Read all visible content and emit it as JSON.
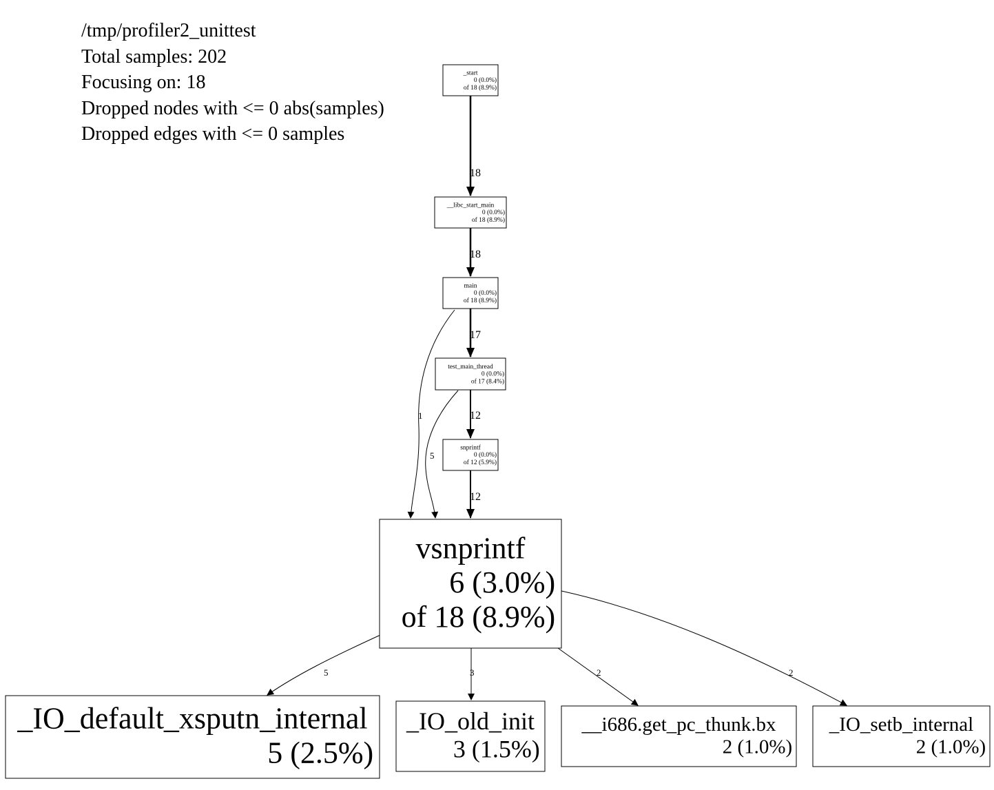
{
  "header": {
    "file": "/tmp/profiler2_unittest",
    "total_samples": "Total samples: 202",
    "focusing": "Focusing on: 18",
    "dropped_nodes": "Dropped nodes with <= 0 abs(samples)",
    "dropped_edges": "Dropped edges with <= 0 samples"
  },
  "nodes": [
    {
      "id": "start",
      "name": "_start",
      "self": "0 (0.0%)",
      "cum": "of 18 (8.9%)"
    },
    {
      "id": "libc",
      "name": "__libc_start_main",
      "self": "0 (0.0%)",
      "cum": "of 18 (8.9%)"
    },
    {
      "id": "main",
      "name": "main",
      "self": "0 (0.0%)",
      "cum": "of 18 (8.9%)"
    },
    {
      "id": "test",
      "name": "test_main_thread",
      "self": "0 (0.0%)",
      "cum": "of 17 (8.4%)"
    },
    {
      "id": "snprintf",
      "name": "snprintf",
      "self": "0 (0.0%)",
      "cum": "of 12 (5.9%)"
    },
    {
      "id": "vsnprintf",
      "name": "vsnprintf",
      "self": "6 (3.0%)",
      "cum": "of 18 (8.9%)"
    },
    {
      "id": "xsputn",
      "name": "_IO_default_xsputn_internal",
      "self": "5 (2.5%)"
    },
    {
      "id": "oldinit",
      "name": "_IO_old_init",
      "self": "3 (1.5%)"
    },
    {
      "id": "thunk",
      "name": "__i686.get_pc_thunk.bx",
      "self": "2 (1.0%)"
    },
    {
      "id": "setb",
      "name": "_IO_setb_internal",
      "self": "2 (1.0%)"
    }
  ],
  "edges": [
    {
      "from": "start",
      "to": "libc",
      "label": "18"
    },
    {
      "from": "libc",
      "to": "main",
      "label": "18"
    },
    {
      "from": "main",
      "to": "test",
      "label": "17"
    },
    {
      "from": "test",
      "to": "snprintf",
      "label": "12"
    },
    {
      "from": "snprintf",
      "to": "vsnprintf",
      "label": "12"
    },
    {
      "from": "main",
      "to": "vsnprintf",
      "label": "1"
    },
    {
      "from": "test",
      "to": "vsnprintf",
      "label": "5"
    },
    {
      "from": "vsnprintf",
      "to": "xsputn",
      "label": "5"
    },
    {
      "from": "vsnprintf",
      "to": "oldinit",
      "label": "3"
    },
    {
      "from": "vsnprintf",
      "to": "thunk",
      "label": "2"
    },
    {
      "from": "vsnprintf",
      "to": "setb",
      "label": "2"
    }
  ]
}
